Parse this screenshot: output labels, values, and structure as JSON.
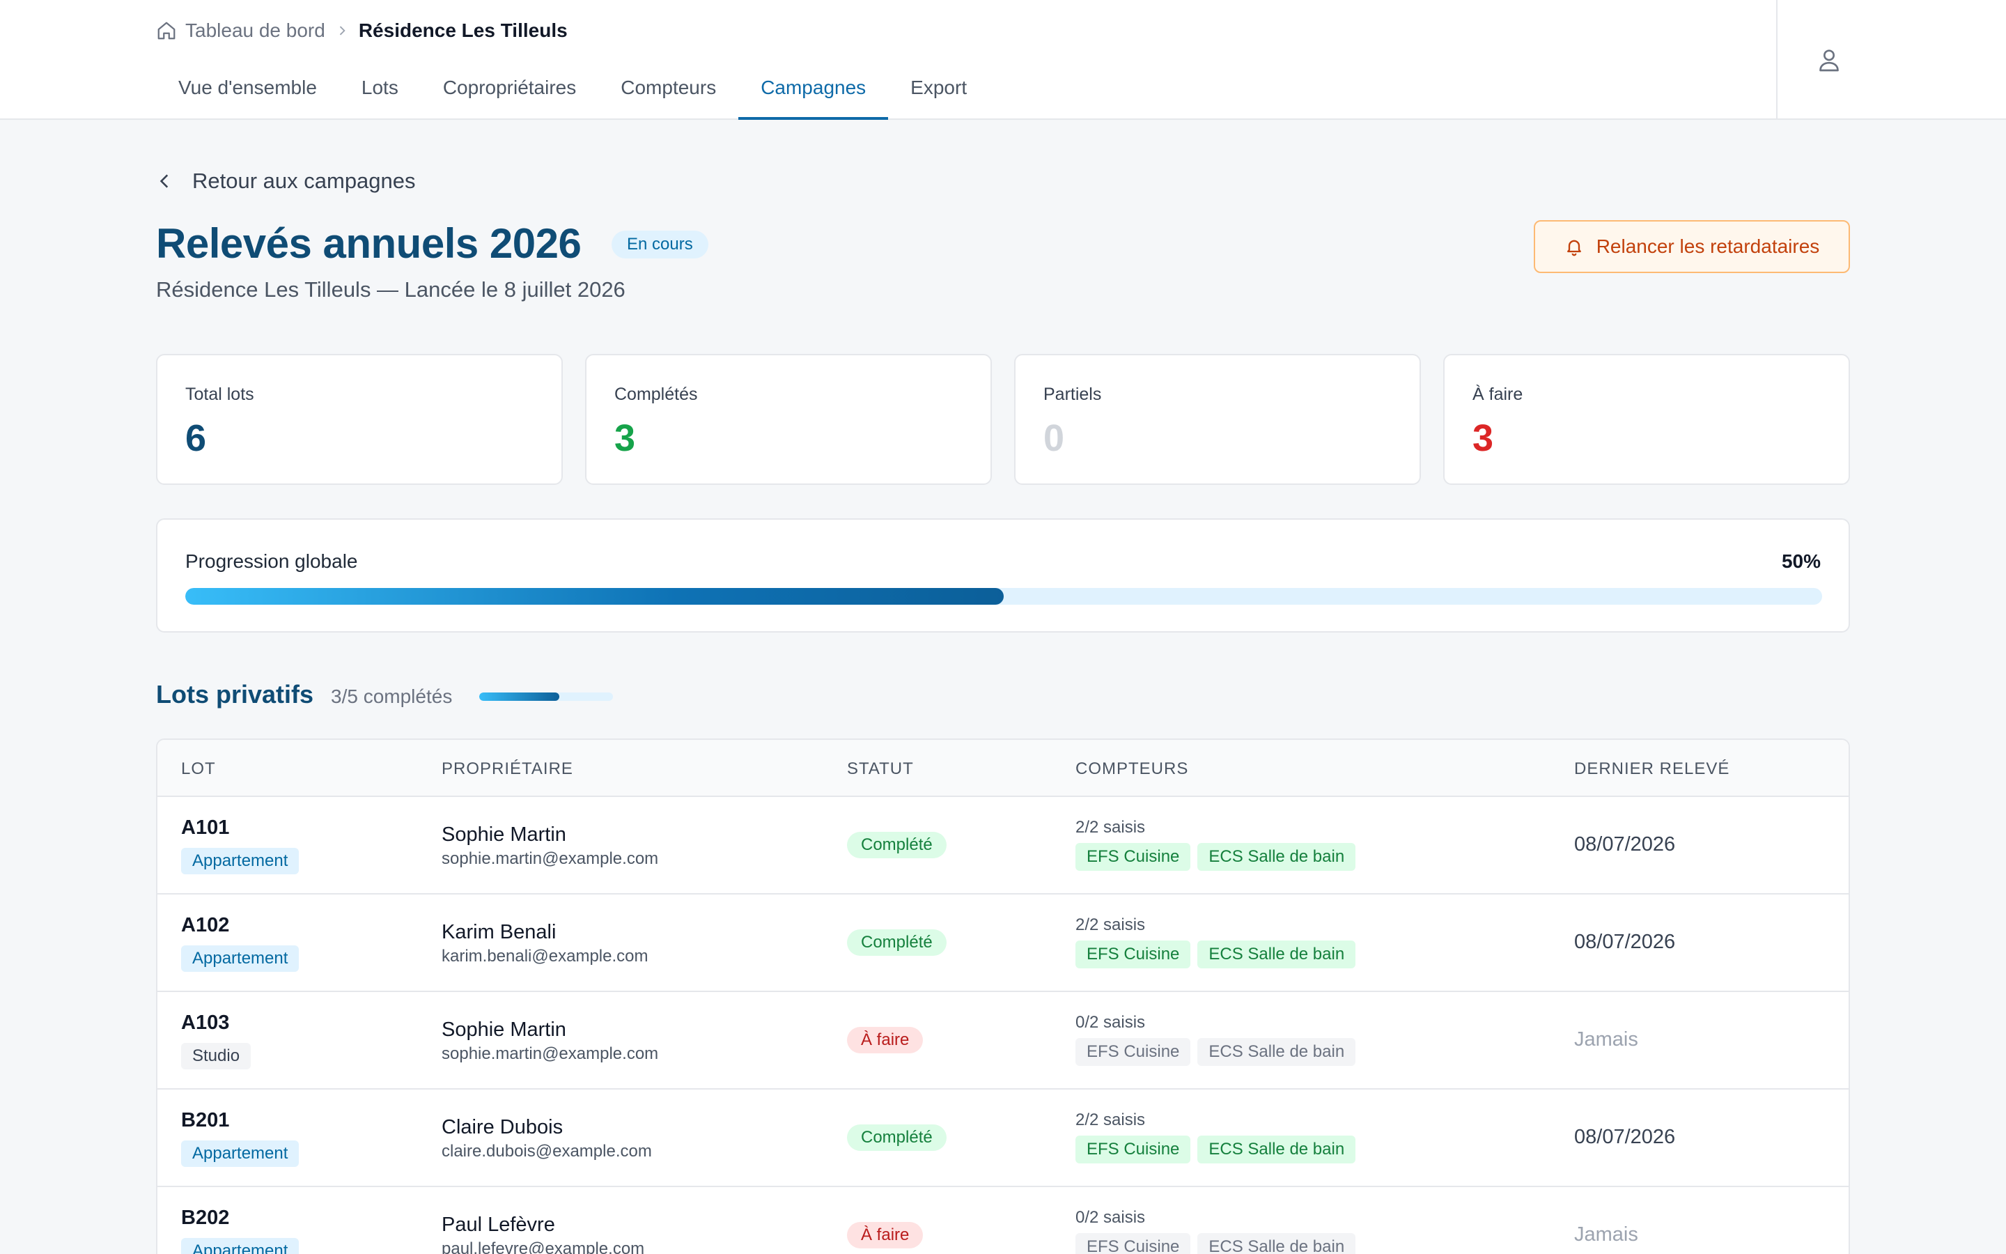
{
  "breadcrumb": {
    "home_label": "Tableau de bord",
    "current": "Résidence Les Tilleuls"
  },
  "nav": {
    "tabs": [
      {
        "label": "Vue d'ensemble"
      },
      {
        "label": "Lots"
      },
      {
        "label": "Copropriétaires"
      },
      {
        "label": "Compteurs"
      },
      {
        "label": "Campagnes",
        "active": true
      },
      {
        "label": "Export"
      }
    ]
  },
  "back_label": "Retour aux campagnes",
  "campaign": {
    "title": "Relevés annuels 2026",
    "status": "En cours",
    "subtitle": "Résidence Les Tilleuls — Lancée le 8 juillet 2026",
    "remind_label": "Relancer les retardataires"
  },
  "stats": [
    {
      "label": "Total lots",
      "value": "6",
      "color": "#0f4c75"
    },
    {
      "label": "Complétés",
      "value": "3",
      "color": "#16a34a"
    },
    {
      "label": "Partiels",
      "value": "0",
      "color": "#d1d5db"
    },
    {
      "label": "À faire",
      "value": "3",
      "color": "#dc2626"
    }
  ],
  "progress": {
    "label": "Progression globale",
    "percent_label": "50%",
    "value": 0.5
  },
  "section": {
    "title": "Lots privatifs",
    "count_label": "3/5 complétés",
    "value": 0.6
  },
  "table": {
    "headers": [
      "LOT",
      "PROPRIÉTAIRE",
      "STATUT",
      "COMPTEURS",
      "DERNIER RELEVÉ"
    ],
    "rows": [
      {
        "lot": "A101",
        "type": "Appartement",
        "type_style": "blue",
        "owner": "Sophie Martin",
        "email": "sophie.martin@example.com",
        "status": "Complété",
        "status_style": "done",
        "counters": "2/2 saisis",
        "meters": [
          "EFS Cuisine",
          "ECS Salle de bain"
        ],
        "meters_style": "done",
        "last": "08/07/2026",
        "last_style": "date"
      },
      {
        "lot": "A102",
        "type": "Appartement",
        "type_style": "blue",
        "owner": "Karim Benali",
        "email": "karim.benali@example.com",
        "status": "Complété",
        "status_style": "done",
        "counters": "2/2 saisis",
        "meters": [
          "EFS Cuisine",
          "ECS Salle de bain"
        ],
        "meters_style": "done",
        "last": "08/07/2026",
        "last_style": "date"
      },
      {
        "lot": "A103",
        "type": "Studio",
        "type_style": "gray",
        "owner": "Sophie Martin",
        "email": "sophie.martin@example.com",
        "status": "À faire",
        "status_style": "todo",
        "counters": "0/2 saisis",
        "meters": [
          "EFS Cuisine",
          "ECS Salle de bain"
        ],
        "meters_style": "todo",
        "last": "Jamais",
        "last_style": "never"
      },
      {
        "lot": "B201",
        "type": "Appartement",
        "type_style": "blue",
        "owner": "Claire Dubois",
        "email": "claire.dubois@example.com",
        "status": "Complété",
        "status_style": "done",
        "counters": "2/2 saisis",
        "meters": [
          "EFS Cuisine",
          "ECS Salle de bain"
        ],
        "meters_style": "done",
        "last": "08/07/2026",
        "last_style": "date"
      },
      {
        "lot": "B202",
        "type": "Appartement",
        "type_style": "blue",
        "owner": "Paul Lefèvre",
        "email": "paul.lefevre@example.com",
        "status": "À faire",
        "status_style": "todo",
        "counters": "0/2 saisis",
        "meters": [
          "EFS Cuisine",
          "ECS Salle de bain"
        ],
        "meters_style": "todo",
        "last": "Jamais",
        "last_style": "never"
      }
    ]
  }
}
